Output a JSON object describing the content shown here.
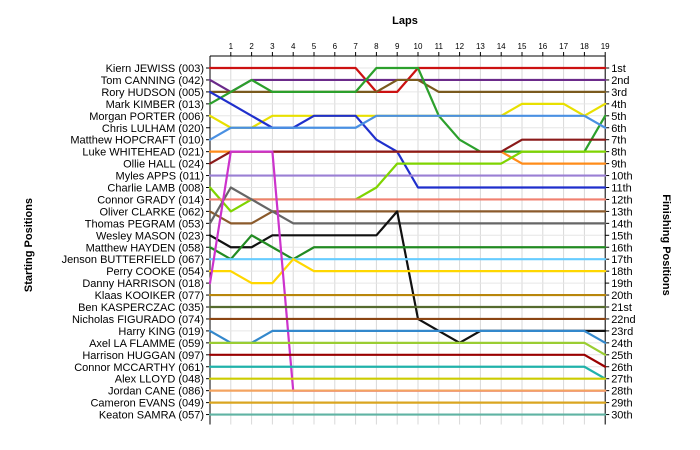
{
  "chart_data": {
    "type": "line",
    "title": "",
    "xlabel": "Laps",
    "ylabel_left": "Starting Positions",
    "ylabel_right": "Finishing Positions",
    "laps": [
      1,
      2,
      3,
      4,
      5,
      6,
      7,
      8,
      9,
      10,
      11,
      12,
      13,
      14,
      15,
      16,
      17,
      18,
      19
    ],
    "grid": true,
    "drivers": [
      {
        "name": "Kiern JEWISS (003)",
        "color": "#cc1111",
        "positions": [
          1,
          1,
          1,
          1,
          1,
          1,
          1,
          1,
          3,
          3,
          1,
          1,
          1,
          1,
          1,
          1,
          1,
          1,
          1,
          1
        ]
      },
      {
        "name": "Tom CANNING (042)",
        "color": "#6b2a8a",
        "positions": [
          2,
          3,
          2,
          2,
          2,
          2,
          2,
          2,
          2,
          2,
          2,
          2,
          2,
          2,
          2,
          2,
          2,
          2,
          2,
          2
        ]
      },
      {
        "name": "Rory HUDSON (005)",
        "color": "#7a5a1e",
        "positions": [
          3,
          3,
          3,
          3,
          3,
          3,
          3,
          3,
          3,
          2,
          2,
          3,
          3,
          3,
          3,
          3,
          3,
          3,
          3,
          3
        ]
      },
      {
        "name": "Mark KIMBER (013)",
        "color": "#2ca02c",
        "positions": [
          4,
          3,
          2,
          3,
          3,
          3,
          3,
          3,
          1,
          1,
          1,
          5,
          7,
          8,
          8,
          8,
          8,
          8,
          8,
          5
        ]
      },
      {
        "name": "Morgan PORTER (006)",
        "color": "#e8e000",
        "positions": [
          5,
          6,
          6,
          5,
          5,
          5,
          5,
          5,
          5,
          5,
          5,
          5,
          5,
          5,
          5,
          4,
          4,
          4,
          5,
          4
        ]
      },
      {
        "name": "Chris LULHAM (020)",
        "color": "#1f2fcc",
        "positions": [
          3,
          4,
          5,
          6,
          6,
          5,
          5,
          5,
          7,
          8,
          11,
          11,
          11,
          11,
          11,
          11,
          11,
          11,
          11,
          11
        ]
      },
      {
        "name": "Matthew HOPCRAFT (010)",
        "color": "#4a90e2",
        "positions": [
          7,
          6,
          6,
          6,
          6,
          6,
          6,
          6,
          5,
          5,
          5,
          5,
          5,
          5,
          5,
          5,
          5,
          5,
          5,
          6
        ]
      },
      {
        "name": "Luke WHITEHEAD (021)",
        "color": "#ff8c1a",
        "positions": [
          8,
          8,
          8,
          8,
          8,
          8,
          8,
          8,
          8,
          8,
          8,
          8,
          8,
          8,
          8,
          9,
          9,
          9,
          9,
          9
        ]
      },
      {
        "name": "Ollie HALL (024)",
        "color": "#8b1a1a",
        "positions": [
          9,
          8,
          8,
          8,
          8,
          8,
          8,
          8,
          8,
          8,
          8,
          8,
          8,
          8,
          8,
          7,
          7,
          7,
          7,
          7
        ]
      },
      {
        "name": "Myles APPS (011)",
        "color": "#9a7fd4",
        "positions": [
          10,
          10,
          10,
          10,
          10,
          10,
          10,
          10,
          10,
          10,
          10,
          10,
          10,
          10,
          10,
          10,
          10,
          10,
          10,
          10
        ]
      },
      {
        "name": "Charlie LAMB (008)",
        "color": "#7fd400",
        "positions": [
          11,
          13,
          12,
          12,
          12,
          12,
          12,
          12,
          11,
          9,
          9,
          9,
          9,
          9,
          9,
          8,
          8,
          8,
          8,
          8
        ]
      },
      {
        "name": "Connor GRADY (014)",
        "color": "#f08070",
        "positions": [
          12,
          12,
          12,
          12,
          12,
          12,
          12,
          12,
          12,
          12,
          12,
          12,
          12,
          12,
          12,
          12,
          12,
          12,
          12,
          12
        ]
      },
      {
        "name": "Oliver CLARKE (062)",
        "color": "#8b5a2b",
        "positions": [
          13,
          14,
          14,
          13,
          13,
          13,
          13,
          13,
          13,
          13,
          13,
          13,
          13,
          13,
          13,
          13,
          13,
          13,
          13,
          13
        ]
      },
      {
        "name": "Thomas PEGRAM (053)",
        "color": "#666666",
        "positions": [
          14,
          11,
          12,
          13,
          14,
          14,
          14,
          14,
          14,
          14,
          14,
          14,
          14,
          14,
          14,
          14,
          14,
          14,
          14,
          14
        ]
      },
      {
        "name": "Wesley MASON (023)",
        "color": "#111111",
        "positions": [
          15,
          16,
          16,
          15,
          15,
          15,
          15,
          15,
          15,
          13,
          22,
          23,
          24,
          23,
          23,
          23,
          23,
          23,
          23,
          23
        ]
      },
      {
        "name": "Matthew HAYDEN (058)",
        "color": "#228b22",
        "positions": [
          16,
          17,
          15,
          16,
          17,
          16,
          16,
          16,
          16,
          16,
          16,
          16,
          16,
          16,
          16,
          16,
          16,
          16,
          16,
          16
        ]
      },
      {
        "name": "Jenson BUTTERFIELD (067)",
        "color": "#66ccff",
        "positions": [
          17,
          17,
          17,
          17,
          17,
          17,
          17,
          17,
          17,
          17,
          17,
          17,
          17,
          17,
          17,
          17,
          17,
          17,
          17,
          17
        ]
      },
      {
        "name": "Perry COOKE (054)",
        "color": "#ffd700",
        "positions": [
          18,
          18,
          19,
          19,
          17,
          18,
          18,
          18,
          18,
          18,
          18,
          18,
          18,
          18,
          18,
          18,
          18,
          18,
          18,
          18
        ]
      },
      {
        "name": "Danny HARRISON (018)",
        "color": "#cc33cc",
        "positions": [
          19,
          8,
          8,
          8,
          28,
          28,
          28,
          28,
          28,
          28,
          28,
          28,
          28,
          28,
          28,
          28,
          28,
          28,
          28,
          28
        ]
      },
      {
        "name": "Klaas KOOIKER (077)",
        "color": "#b8860b",
        "positions": [
          20,
          20,
          20,
          20,
          20,
          20,
          20,
          20,
          20,
          20,
          20,
          20,
          20,
          20,
          20,
          20,
          20,
          20,
          20,
          20
        ]
      },
      {
        "name": "Ben KASPERCZAC (035)",
        "color": "#556b2f",
        "positions": [
          21,
          21,
          21,
          21,
          21,
          21,
          21,
          21,
          21,
          21,
          21,
          21,
          21,
          21,
          21,
          21,
          21,
          21,
          21,
          21
        ]
      },
      {
        "name": "Nicholas FIGURADO (074)",
        "color": "#8b4513",
        "positions": [
          22,
          22,
          22,
          22,
          22,
          22,
          22,
          22,
          22,
          22,
          22,
          22,
          22,
          22,
          22,
          22,
          22,
          22,
          22,
          22
        ]
      },
      {
        "name": "Harry KING (019)",
        "color": "#3388cc",
        "positions": [
          23,
          24,
          24,
          23,
          23,
          23,
          23,
          23,
          23,
          23,
          23,
          23,
          23,
          23,
          23,
          23,
          23,
          23,
          23,
          24
        ]
      },
      {
        "name": "Axel LA FLAMME (059)",
        "color": "#9acd32",
        "positions": [
          24,
          24,
          24,
          24,
          24,
          24,
          24,
          24,
          24,
          24,
          24,
          24,
          24,
          24,
          24,
          24,
          24,
          24,
          24,
          25
        ]
      },
      {
        "name": "Harrison HUGGAN (097)",
        "color": "#990000",
        "positions": [
          25,
          25,
          25,
          25,
          25,
          25,
          25,
          25,
          25,
          25,
          25,
          25,
          25,
          25,
          25,
          25,
          25,
          25,
          25,
          26
        ]
      },
      {
        "name": "Connor MCCARTHY (061)",
        "color": "#20b2aa",
        "positions": [
          26,
          26,
          26,
          26,
          26,
          26,
          26,
          26,
          26,
          26,
          26,
          26,
          26,
          26,
          26,
          26,
          26,
          26,
          26,
          27
        ]
      },
      {
        "name": "Alex LLOYD (048)",
        "color": "#cccc00",
        "positions": [
          27,
          27,
          27,
          27,
          27,
          27,
          27,
          27,
          27,
          27,
          27,
          27,
          27,
          27,
          27,
          27,
          27,
          27,
          27,
          27
        ]
      },
      {
        "name": "Jordan CANE (086)",
        "color": "#f4a460",
        "positions": [
          28,
          28,
          28,
          28,
          28,
          28,
          28,
          28,
          28,
          28,
          28,
          28,
          28,
          28,
          28,
          28,
          28,
          28,
          28,
          28
        ]
      },
      {
        "name": "Cameron EVANS (049)",
        "color": "#daa520",
        "positions": [
          29,
          29,
          29,
          29,
          29,
          29,
          29,
          29,
          29,
          29,
          29,
          29,
          29,
          29,
          29,
          29,
          29,
          29,
          29,
          29
        ]
      },
      {
        "name": "Keaton SAMRA (057)",
        "color": "#5fb3a3",
        "positions": [
          30,
          30,
          30,
          30,
          30,
          30,
          30,
          30,
          30,
          30,
          30,
          30,
          30,
          30,
          30,
          30,
          30,
          30,
          30,
          30
        ]
      }
    ],
    "finishing_labels": [
      "1st",
      "2nd",
      "3rd",
      "4th",
      "5th",
      "6th",
      "7th",
      "8th",
      "9th",
      "10th",
      "11th",
      "12th",
      "13th",
      "14th",
      "15th",
      "16th",
      "17th",
      "18th",
      "19th",
      "20th",
      "21st",
      "22nd",
      "23rd",
      "24th",
      "25th",
      "26th",
      "27th",
      "28th",
      "29th",
      "30th"
    ]
  }
}
